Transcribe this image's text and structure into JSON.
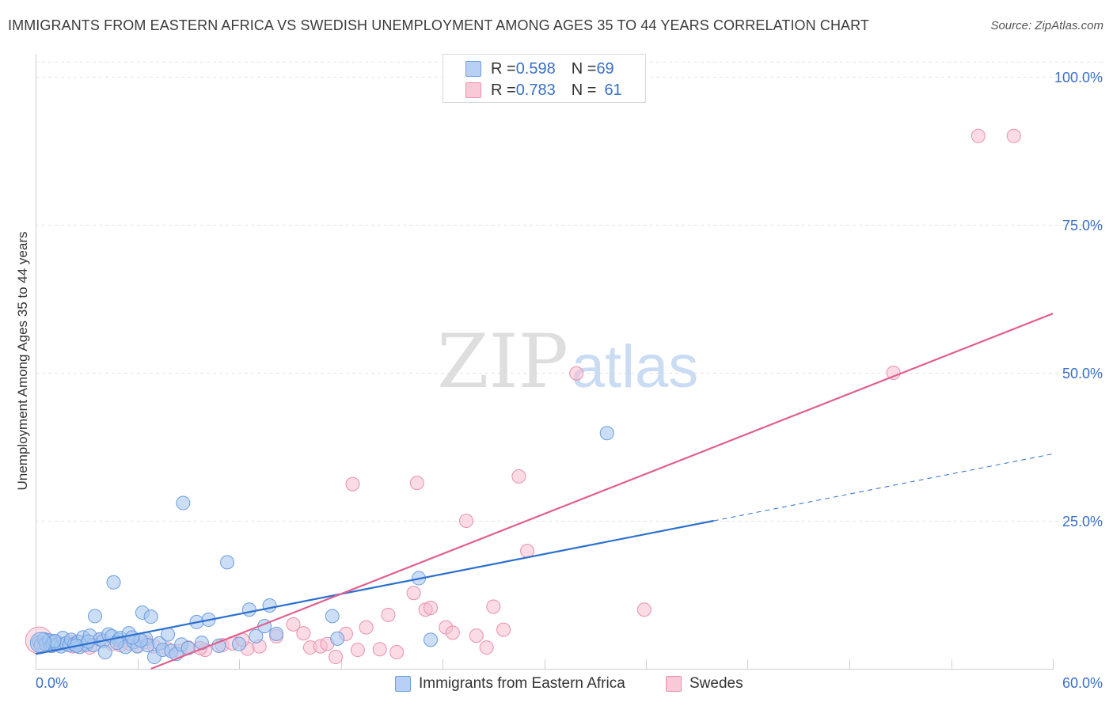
{
  "header": {
    "title": "IMMIGRANTS FROM EASTERN AFRICA VS SWEDISH UNEMPLOYMENT AMONG AGES 35 TO 44 YEARS CORRELATION CHART",
    "source": "Source: ZipAtlas.com"
  },
  "watermark": {
    "zip": "ZIP",
    "atlas": "atlas"
  },
  "legend": {
    "series1": {
      "r_label": "R = ",
      "r_value": "0.598",
      "n_label": "N = ",
      "n_value": "69"
    },
    "series2": {
      "r_label": "R = ",
      "r_value": "0.783",
      "n_label": "N = ",
      "n_value": "61"
    }
  },
  "colors": {
    "blue_fill": "#a9c8f0",
    "blue_stroke": "#6b9de0",
    "blue_line": "#2b6fcf",
    "pink_fill": "#f7bfd0",
    "pink_stroke": "#ea8fae",
    "pink_line": "#e0608f",
    "axis_text": "#3a6fc4",
    "grid": "#e3e3e3"
  },
  "chart_data": {
    "type": "scatter",
    "title": "IMMIGRANTS FROM EASTERN AFRICA VS SWEDISH UNEMPLOYMENT AMONG AGES 35 TO 44 YEARS CORRELATION CHART",
    "xlabel": "",
    "ylabel": "Unemployment Among Ages 35 to 44 years",
    "xlim": [
      0,
      60
    ],
    "ylim": [
      0,
      100
    ],
    "x_tick_labels": [
      "0.0%",
      "60.0%"
    ],
    "y_ticks": [
      25,
      50,
      75,
      100
    ],
    "y_tick_labels": [
      "25.0%",
      "50.0%",
      "75.0%",
      "100.0%"
    ],
    "series": [
      {
        "name": "Immigrants from Eastern Africa",
        "r": 0.598,
        "n": 69,
        "trend": {
          "x0": 0,
          "y0": 2.5,
          "x1": 40,
          "y1": 25,
          "dash_to_x": 60,
          "dash_to_y": 36.3
        },
        "points": [
          [
            0.2,
            4.5
          ],
          [
            0.3,
            4.0
          ],
          [
            0.5,
            5.0
          ],
          [
            0.6,
            4.2
          ],
          [
            0.8,
            4.8
          ],
          [
            0.9,
            3.9
          ],
          [
            1.0,
            4.4
          ],
          [
            1.2,
            4.6
          ],
          [
            1.3,
            4.1
          ],
          [
            1.5,
            3.8
          ],
          [
            1.6,
            5.2
          ],
          [
            1.8,
            4.3
          ],
          [
            2.0,
            4.0
          ],
          [
            2.1,
            4.9
          ],
          [
            2.3,
            4.2
          ],
          [
            2.5,
            4.5
          ],
          [
            2.6,
            3.7
          ],
          [
            2.8,
            5.3
          ],
          [
            3.0,
            4.1
          ],
          [
            3.2,
            5.6
          ],
          [
            3.4,
            4.0
          ],
          [
            3.5,
            8.9
          ],
          [
            3.8,
            5.0
          ],
          [
            4.0,
            4.7
          ],
          [
            4.1,
            2.8
          ],
          [
            4.3,
            5.8
          ],
          [
            4.5,
            5.5
          ],
          [
            4.9,
            4.9
          ],
          [
            5.0,
            5.2
          ],
          [
            5.3,
            3.7
          ],
          [
            5.5,
            6.0
          ],
          [
            5.8,
            4.5
          ],
          [
            6.0,
            3.8
          ],
          [
            6.3,
            9.5
          ],
          [
            6.5,
            5.1
          ],
          [
            6.6,
            4.0
          ],
          [
            6.8,
            8.8
          ],
          [
            7.0,
            2.0
          ],
          [
            7.3,
            4.3
          ],
          [
            7.5,
            3.2
          ],
          [
            7.8,
            5.8
          ],
          [
            8.0,
            3.0
          ],
          [
            8.3,
            2.5
          ],
          [
            8.6,
            4.1
          ],
          [
            9.5,
            7.9
          ],
          [
            9.8,
            4.4
          ],
          [
            10.2,
            8.3
          ],
          [
            11.3,
            18.0
          ],
          [
            12.6,
            10.0
          ],
          [
            13.0,
            5.5
          ],
          [
            13.8,
            10.7
          ],
          [
            14.2,
            5.9
          ],
          [
            17.5,
            8.9
          ],
          [
            17.8,
            5.1
          ],
          [
            4.6,
            14.6
          ],
          [
            8.7,
            28.0
          ],
          [
            22.6,
            15.3
          ],
          [
            23.3,
            4.9
          ],
          [
            33.7,
            39.8
          ],
          [
            1.1,
            4.7
          ],
          [
            2.4,
            3.9
          ],
          [
            4.8,
            4.4
          ],
          [
            6.2,
            4.8
          ],
          [
            9.0,
            3.5
          ],
          [
            10.8,
            3.9
          ],
          [
            12.0,
            4.2
          ],
          [
            13.5,
            7.2
          ],
          [
            3.1,
            4.6
          ],
          [
            5.7,
            5.3
          ]
        ]
      },
      {
        "name": "Swedes",
        "r": 0.783,
        "n": 61,
        "trend": {
          "x0": 6.8,
          "y0": 0,
          "x1": 60,
          "y1": 60
        },
        "points": [
          [
            0.3,
            4.5
          ],
          [
            0.5,
            4.2
          ],
          [
            0.8,
            4.8
          ],
          [
            1.0,
            3.9
          ],
          [
            1.4,
            4.3
          ],
          [
            1.8,
            4.1
          ],
          [
            2.2,
            3.8
          ],
          [
            2.5,
            4.6
          ],
          [
            2.8,
            4.0
          ],
          [
            3.2,
            3.6
          ],
          [
            3.8,
            4.9
          ],
          [
            4.5,
            4.2
          ],
          [
            5.5,
            4.3
          ],
          [
            6.0,
            3.9
          ],
          [
            6.5,
            4.5
          ],
          [
            7.0,
            3.8
          ],
          [
            7.8,
            3.3
          ],
          [
            8.5,
            3.0
          ],
          [
            9.0,
            3.6
          ],
          [
            10.0,
            3.2
          ],
          [
            11.0,
            4.0
          ],
          [
            11.6,
            4.3
          ],
          [
            12.5,
            3.4
          ],
          [
            13.2,
            3.8
          ],
          [
            14.2,
            5.5
          ],
          [
            15.2,
            7.5
          ],
          [
            15.8,
            6.0
          ],
          [
            16.2,
            3.6
          ],
          [
            16.8,
            3.8
          ],
          [
            17.2,
            4.2
          ],
          [
            18.3,
            5.9
          ],
          [
            19.0,
            3.2
          ],
          [
            19.5,
            7.0
          ],
          [
            20.3,
            3.3
          ],
          [
            20.8,
            9.1
          ],
          [
            21.3,
            2.8
          ],
          [
            22.3,
            12.8
          ],
          [
            23.0,
            10.0
          ],
          [
            23.3,
            10.3
          ],
          [
            24.2,
            7.0
          ],
          [
            24.6,
            6.1
          ],
          [
            26.0,
            5.6
          ],
          [
            26.6,
            3.6
          ],
          [
            27.0,
            10.5
          ],
          [
            27.6,
            6.6
          ],
          [
            28.5,
            32.5
          ],
          [
            29.0,
            19.9
          ],
          [
            31.9,
            49.9
          ],
          [
            35.9,
            10.0
          ],
          [
            50.6,
            50.0
          ],
          [
            55.6,
            90.0
          ],
          [
            57.7,
            90.0
          ],
          [
            18.7,
            31.2
          ],
          [
            22.5,
            31.4
          ],
          [
            25.4,
            25.0
          ],
          [
            17.7,
            2.0
          ],
          [
            12.2,
            4.9
          ],
          [
            9.7,
            3.5
          ],
          [
            5.0,
            4.0
          ],
          [
            1.1,
            4.4
          ],
          [
            2.0,
            4.5
          ]
        ]
      }
    ]
  },
  "bottom_legend": {
    "series1": "Immigrants from Eastern Africa",
    "series2": "Swedes"
  }
}
